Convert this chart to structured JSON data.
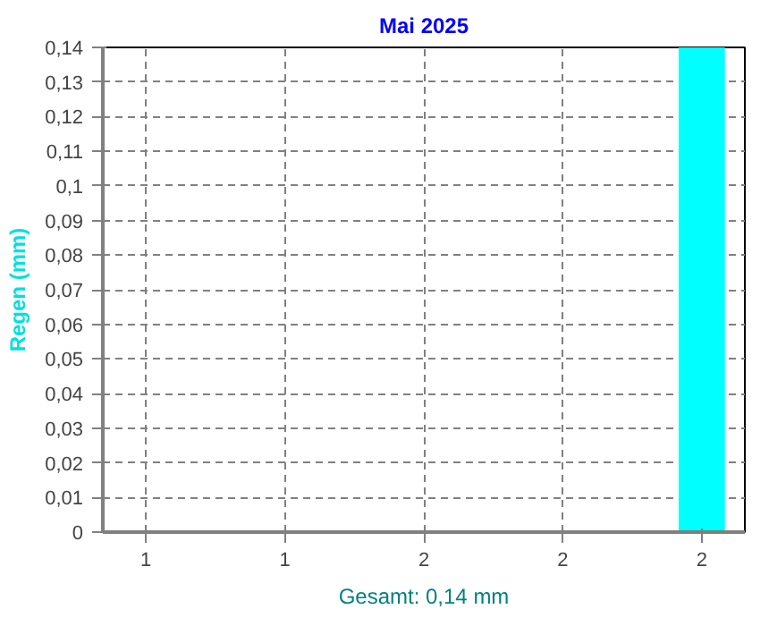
{
  "chart_data": {
    "type": "bar",
    "title": "Mai 2025",
    "ylabel": "Regen (mm)",
    "categories": [
      "1",
      "1",
      "2",
      "2",
      "2"
    ],
    "series": [
      {
        "color": "#00ffff",
        "values": [
          0,
          null,
          null,
          null,
          0.14
        ]
      }
    ],
    "ylim": [
      0,
      0.14
    ],
    "yticks": [
      0,
      {
        "value": 0.01,
        "label": "0,01"
      },
      {
        "value": 0.02,
        "label": "0,02"
      },
      {
        "value": 0.03,
        "label": "0,03"
      },
      {
        "value": 0.04,
        "label": "0,04"
      },
      {
        "value": 0.05,
        "label": "0,05"
      },
      {
        "value": 0.06,
        "label": "0,06"
      },
      {
        "value": 0.07,
        "label": "0,07"
      },
      {
        "value": 0.08,
        "label": "0,08"
      },
      {
        "value": 0.09,
        "label": "0,09"
      },
      {
        "value": 0.1,
        "label": "0,1"
      },
      {
        "value": 0.11,
        "label": "0,11"
      },
      {
        "value": 0.12,
        "label": "0,12"
      },
      {
        "value": 0.13,
        "label": "0,13"
      },
      {
        "value": 0.14,
        "label": "0,14"
      }
    ],
    "grid": true,
    "line_style": "dashed",
    "annotations": [
      "Gesamt: 0,14 mm"
    ]
  }
}
